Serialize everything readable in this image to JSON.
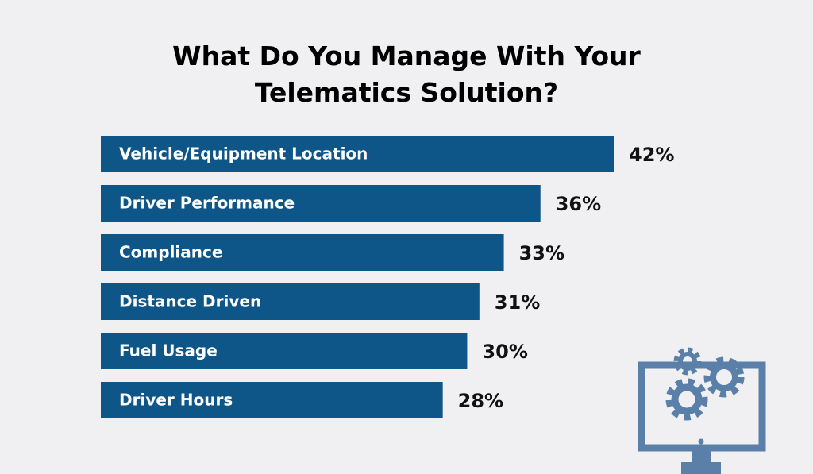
{
  "chart_data": {
    "type": "bar",
    "orientation": "horizontal",
    "title": "What Do You Manage With Your Telematics Solution?",
    "categories": [
      "Vehicle/Equipment Location",
      "Driver Performance",
      "Compliance",
      "Distance Driven",
      "Fuel Usage",
      "Driver Hours"
    ],
    "values": [
      42,
      36,
      33,
      31,
      30,
      28
    ],
    "value_labels": [
      "42%",
      "36%",
      "33%",
      "31%",
      "30%",
      "28%"
    ],
    "color": "#0e5588"
  }
}
